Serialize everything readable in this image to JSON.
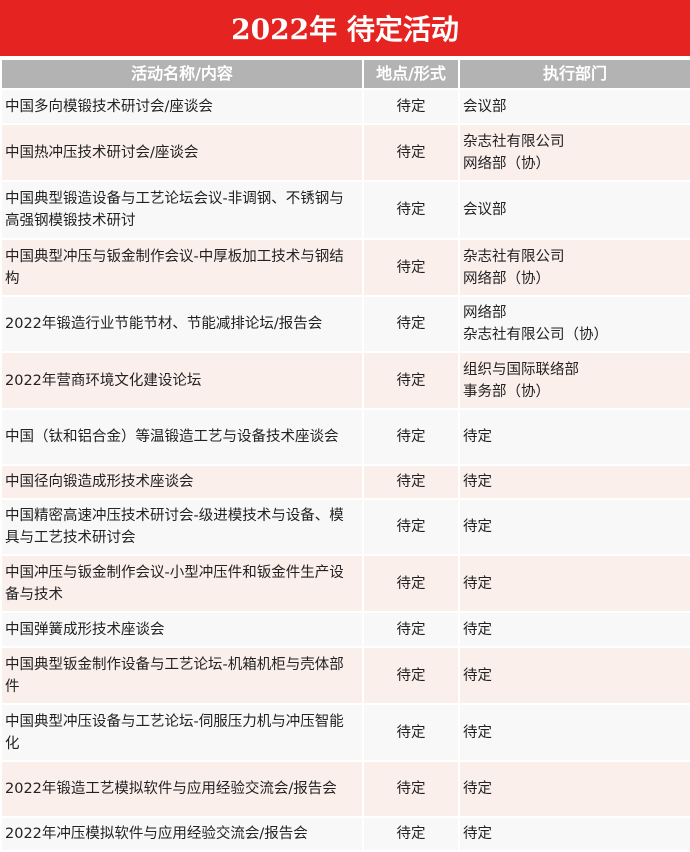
{
  "title": "2022年 待定活动",
  "columns": [
    "活动名称/内容",
    "地点/形式",
    "执行部门"
  ],
  "rows": [
    {
      "name": "中国多向模锻技术研讨会/座谈会",
      "place": "待定",
      "dept": [
        "会议部"
      ]
    },
    {
      "name": "中国热冲压技术研讨会/座谈会",
      "place": "待定",
      "dept": [
        "杂志社有限公司",
        "网络部（协）"
      ]
    },
    {
      "name": "中国典型锻造设备与工艺论坛会议-非调钢、不锈钢与高强钢模锻技术研讨",
      "place": "待定",
      "dept": [
        "会议部"
      ]
    },
    {
      "name": "中国典型冲压与钣金制作会议-中厚板加工技术与钢结构",
      "place": "待定",
      "dept": [
        "杂志社有限公司",
        "网络部（协）"
      ]
    },
    {
      "name": "2022年锻造行业节能节材、节能减排论坛/报告会",
      "place": "待定",
      "dept": [
        "网络部",
        "杂志社有限公司（协）"
      ]
    },
    {
      "name": "2022年营商环境文化建设论坛",
      "place": "待定",
      "dept": [
        "组织与国际联络部",
        "事务部（协）"
      ]
    },
    {
      "name": "中国（钛和铝合金）等温锻造工艺与设备技术座谈会",
      "place": "待定",
      "dept": [
        "待定"
      ]
    },
    {
      "name": "中国径向锻造成形技术座谈会",
      "place": "待定",
      "dept": [
        "待定"
      ]
    },
    {
      "name": "中国精密高速冲压技术研讨会-级进模技术与设备、模具与工艺技术研讨会",
      "place": "待定",
      "dept": [
        "待定"
      ]
    },
    {
      "name": "中国冲压与钣金制作会议-小型冲压件和钣金件生产设备与技术",
      "place": "待定",
      "dept": [
        "待定"
      ]
    },
    {
      "name": "中国弹簧成形技术座谈会",
      "place": "待定",
      "dept": [
        "待定"
      ]
    },
    {
      "name": "中国典型钣金制作设备与工艺论坛-机箱机柜与壳体部件",
      "place": "待定",
      "dept": [
        "待定"
      ]
    },
    {
      "name": "中国典型冲压设备与工艺论坛-伺服压力机与冲压智能化",
      "place": "待定",
      "dept": [
        "待定"
      ]
    },
    {
      "name": "2022年锻造工艺模拟软件与应用经验交流会/报告会",
      "place": "待定",
      "dept": [
        "待定"
      ]
    },
    {
      "name": "2022年冲压模拟软件与应用经验交流会/报告会",
      "place": "待定",
      "dept": [
        "待定"
      ]
    }
  ],
  "colors": {
    "title_bg": "#e52421",
    "header_bg": "#b3b3b3",
    "row_alt": "#fbefec",
    "row": "#f8f8f8"
  }
}
